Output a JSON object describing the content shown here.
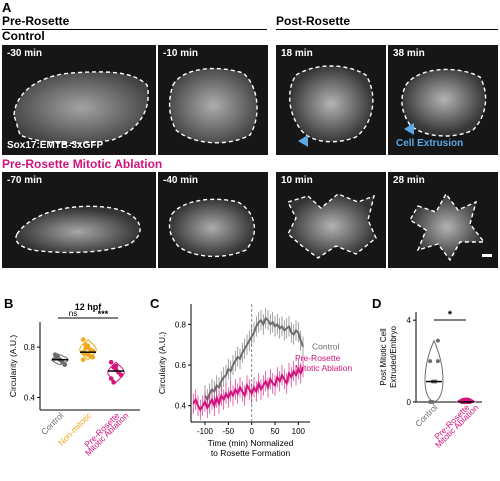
{
  "panel_a": {
    "letter": "A",
    "pre_header": "Pre-Rosette",
    "post_header": "Post-Rosette",
    "control_label": "Control",
    "ablation_label": "Pre-Rosette Mitotic Ablation",
    "marker_label": "Sox17:EMTB-3xGFP",
    "extrusion_label": "Cell Extrusion",
    "control_times": [
      "-30 min",
      "-10 min",
      "18 min",
      "38 min"
    ],
    "ablation_times": [
      "-70 min",
      "-40 min",
      "10 min",
      "28 min"
    ],
    "colors": {
      "ablation": "#d1147c",
      "extrusion": "#5aa8e6",
      "tile_bg": "#161616"
    }
  },
  "panel_b": {
    "letter": "B",
    "stage_label": "12 hpf",
    "sig_ns": "ns",
    "sig_stars": "***",
    "chart_data": {
      "type": "scatter",
      "ylabel": "Circularity (A.U.)",
      "ylim": [
        0.3,
        1.0
      ],
      "yticks": [
        "0.4",
        "0.8"
      ],
      "categories": [
        "Control",
        "Non-mitotic",
        "Pre-Rosette Mitotic Ablation"
      ],
      "category_lines": [
        [
          "Control"
        ],
        [
          "Non-mitotic"
        ],
        [
          "Pre-Rosette",
          "Mitotic Ablation"
        ]
      ],
      "colors": [
        "#6e6e6e",
        "#f0a81e",
        "#d1147c"
      ],
      "medians": [
        0.7,
        0.76,
        0.61
      ],
      "points": [
        [
          0.74,
          0.72,
          0.7,
          0.68,
          0.66,
          0.71,
          0.73
        ],
        [
          0.86,
          0.82,
          0.8,
          0.78,
          0.77,
          0.76,
          0.75,
          0.74,
          0.73,
          0.72,
          0.7,
          0.79,
          0.81
        ],
        [
          0.68,
          0.64,
          0.62,
          0.6,
          0.58,
          0.55,
          0.52,
          0.65
        ]
      ]
    }
  },
  "panel_c": {
    "letter": "C",
    "chart_data": {
      "type": "line",
      "ylabel": "Circularity (A.U.)",
      "xlabel_lines": [
        "Time (min) Normalized",
        "to Rosette Formation"
      ],
      "xlim": [
        -130,
        125
      ],
      "ylim": [
        0.32,
        0.9
      ],
      "xticks": [
        "-100",
        "-50",
        "0",
        "50",
        "100"
      ],
      "yticks": [
        "0.4",
        "0.6",
        "0.8"
      ],
      "series": [
        {
          "name": "Control",
          "color": "#6e6e6e",
          "x": [
            -100,
            -95,
            -90,
            -85,
            -80,
            -75,
            -70,
            -65,
            -60,
            -55,
            -50,
            -45,
            -40,
            -35,
            -30,
            -25,
            -20,
            -15,
            -10,
            -5,
            0,
            5,
            10,
            15,
            20,
            25,
            30,
            35,
            40,
            45,
            50,
            55,
            60,
            65,
            70,
            75,
            80,
            85,
            90,
            95,
            100,
            105,
            110
          ],
          "y": [
            0.45,
            0.43,
            0.46,
            0.48,
            0.47,
            0.5,
            0.49,
            0.52,
            0.54,
            0.55,
            0.58,
            0.57,
            0.6,
            0.62,
            0.64,
            0.63,
            0.66,
            0.68,
            0.7,
            0.72,
            0.74,
            0.76,
            0.79,
            0.81,
            0.82,
            0.8,
            0.83,
            0.82,
            0.8,
            0.81,
            0.79,
            0.8,
            0.78,
            0.79,
            0.77,
            0.78,
            0.79,
            0.76,
            0.75,
            0.77,
            0.76,
            0.72,
            0.69
          ]
        },
        {
          "name": "Pre-Rosette Mitotic Ablation",
          "color": "#d1147c",
          "x": [
            -125,
            -120,
            -115,
            -110,
            -105,
            -100,
            -95,
            -90,
            -85,
            -80,
            -75,
            -70,
            -65,
            -60,
            -55,
            -50,
            -45,
            -40,
            -35,
            -30,
            -25,
            -20,
            -15,
            -10,
            -5,
            0,
            5,
            10,
            15,
            20,
            25,
            30,
            35,
            40,
            45,
            50,
            55,
            60,
            65,
            70,
            75,
            80,
            85,
            90,
            95,
            100,
            105,
            110
          ],
          "y": [
            0.41,
            0.43,
            0.4,
            0.38,
            0.4,
            0.42,
            0.39,
            0.41,
            0.43,
            0.4,
            0.44,
            0.41,
            0.45,
            0.43,
            0.46,
            0.44,
            0.47,
            0.45,
            0.48,
            0.46,
            0.49,
            0.47,
            0.45,
            0.5,
            0.48,
            0.46,
            0.49,
            0.47,
            0.51,
            0.48,
            0.5,
            0.52,
            0.49,
            0.53,
            0.51,
            0.5,
            0.54,
            0.52,
            0.55,
            0.53,
            0.51,
            0.56,
            0.54,
            0.57,
            0.55,
            0.58,
            0.56,
            0.59
          ]
        }
      ],
      "error_bar": 0.05,
      "vline_x": 0
    },
    "legend_control": "Control",
    "legend_ablation_lines": [
      "Pre-Rosette",
      "Mitotic Ablation"
    ]
  },
  "panel_d": {
    "letter": "D",
    "sig": "*",
    "chart_data": {
      "type": "scatter",
      "ylabel_lines": [
        "Post Mitotic Cell",
        "Extruded/Embryo"
      ],
      "ylim": [
        0,
        4.4
      ],
      "yticks": [
        "0",
        "4"
      ],
      "categories": [
        "Control",
        "Pre-Rosette Mitotic Ablation"
      ],
      "category_lines": [
        [
          "Control"
        ],
        [
          "Pre-Rosette",
          "Mitotic Ablation"
        ]
      ],
      "colors": [
        "#6e6e6e",
        "#d1147c"
      ],
      "medians": [
        1,
        0
      ],
      "points": [
        [
          0,
          1,
          1,
          2,
          2,
          0,
          1,
          3
        ],
        [
          0,
          0,
          0,
          0,
          0,
          0,
          0
        ]
      ]
    }
  }
}
